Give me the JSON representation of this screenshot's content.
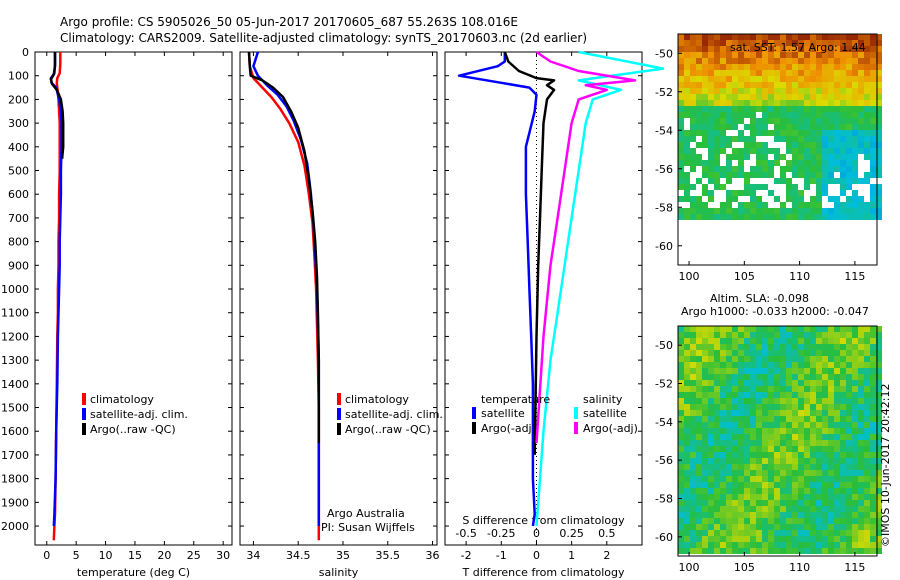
{
  "title_line1": "Argo profile: CS 5905026_50 05-Jun-2017 20170605_687 55.263S 108.016E",
  "title_line2": "Climatology: CARS2009. Satellite-adjusted climatology: synTS_20170603.nc (2d earlier)",
  "sst_title": "sat. SST: 1.57 Argo: 1.44",
  "sla_title_line1": "Altim. SLA: -0.098",
  "sla_title_line2": "Argo h1000: -0.033 h2000: -0.047",
  "imos_stamp": "©IMOS 10-Jun-2017 20:42:12",
  "credit_line1": "Argo Australia",
  "credit_line2": "PI: Susan Wijffels",
  "diff_legend": {
    "temperature_header": "temperature",
    "salinity_header": "salinity",
    "satellite": "satellite",
    "argo_adj": "Argo(-adj)"
  },
  "profile_legend": {
    "climatology": "climatology",
    "satellite_adj": "satellite-adj. clim.",
    "argo_raw": "Argo(..raw -QC)"
  },
  "colors": {
    "climatology": "#ff0000",
    "satellite": "#0000ff",
    "argo": "#000000",
    "salinity_satellite": "#00ffff",
    "salinity_argo": "#ff00ff"
  },
  "chart_data": [
    {
      "type": "line",
      "xlabel": "temperature (deg C)",
      "xticks": [
        "0",
        "5",
        "10",
        "15",
        "20",
        "25",
        "30"
      ],
      "xlim": [
        -2,
        31.5
      ],
      "yticks": [
        "0",
        "100",
        "200",
        "300",
        "400",
        "500",
        "600",
        "700",
        "800",
        "900",
        "1000",
        "1100",
        "1200",
        "1300",
        "1400",
        "1500",
        "1600",
        "1700",
        "1800",
        "1900",
        "2000"
      ],
      "ylim": [
        2080,
        0
      ],
      "series": [
        {
          "name": "climatology",
          "color": "#ff0000",
          "x": [
            2.3,
            2.3,
            2.2,
            1.8,
            1.7,
            1.8,
            2.0,
            2.1,
            2.2,
            2.2,
            2.2,
            2.1,
            2.1,
            2.0,
            2.0,
            1.9,
            1.9,
            1.8,
            1.7,
            1.6,
            1.5,
            1.4,
            1.3,
            1.2
          ],
          "y": [
            0,
            50,
            90,
            110,
            130,
            150,
            200,
            250,
            300,
            400,
            500,
            600,
            700,
            800,
            900,
            1000,
            1100,
            1200,
            1400,
            1600,
            1800,
            1950,
            2000,
            2060
          ]
        },
        {
          "name": "satellite-adj. clim.",
          "color": "#0000ff",
          "x": [
            1.4,
            1.4,
            1.3,
            0.7,
            0.8,
            1.6,
            2.1,
            2.4,
            2.5,
            2.5,
            2.4,
            2.4,
            2.3,
            2.2,
            2.2,
            2.1,
            2.0,
            1.9,
            1.8,
            1.6,
            1.5,
            1.3,
            1.2
          ],
          "y": [
            0,
            50,
            90,
            110,
            130,
            150,
            200,
            250,
            300,
            400,
            500,
            600,
            700,
            800,
            900,
            1000,
            1100,
            1200,
            1400,
            1600,
            1800,
            1950,
            2000
          ]
        },
        {
          "name": "Argo(..raw -QC)",
          "color": "#000000",
          "x": [
            1.4,
            1.4,
            1.2,
            0.7,
            0.9,
            1.7,
            2.4,
            2.7,
            2.8,
            2.8,
            2.6
          ],
          "y": [
            0,
            60,
            95,
            115,
            135,
            160,
            200,
            250,
            300,
            400,
            450
          ]
        }
      ]
    },
    {
      "type": "line",
      "xlabel": "salinity",
      "xticks": [
        "34",
        "34.5",
        "35",
        "35.5",
        "36"
      ],
      "xlim": [
        33.85,
        36.05
      ],
      "yticks": [
        "0",
        "100",
        "200",
        "300",
        "400",
        "500",
        "600",
        "700",
        "800",
        "900",
        "1000",
        "1100",
        "1200",
        "1300",
        "1400",
        "1500",
        "1600",
        "1700",
        "1800",
        "1900",
        "2000"
      ],
      "ylim": [
        2080,
        0
      ],
      "series": [
        {
          "name": "climatology",
          "color": "#ff0000",
          "x": [
            33.95,
            33.96,
            34.0,
            34.1,
            34.2,
            34.3,
            34.4,
            34.5,
            34.57,
            34.62,
            34.66,
            34.68,
            34.7,
            34.71,
            34.72,
            34.73,
            34.73,
            34.73,
            34.73,
            34.73
          ],
          "y": [
            0,
            60,
            110,
            150,
            190,
            240,
            300,
            380,
            480,
            600,
            720,
            850,
            1000,
            1150,
            1300,
            1500,
            1700,
            1900,
            2000,
            2060
          ]
        },
        {
          "name": "satellite-adj. clim.",
          "color": "#0000ff",
          "x": [
            34.05,
            34.0,
            34.05,
            34.15,
            34.27,
            34.37,
            34.45,
            34.53,
            34.6,
            34.64,
            34.67,
            34.69,
            34.71,
            34.72,
            34.73,
            34.73,
            34.73,
            34.73,
            34.73
          ],
          "y": [
            0,
            60,
            100,
            140,
            180,
            230,
            290,
            370,
            470,
            590,
            720,
            850,
            1000,
            1150,
            1300,
            1500,
            1700,
            1900,
            2000
          ]
        },
        {
          "name": "Argo(..raw -QC)",
          "color": "#000000",
          "x": [
            33.95,
            33.96,
            33.97,
            34.1,
            34.22,
            34.33,
            34.42,
            34.5,
            34.57,
            34.62,
            34.66,
            34.69,
            34.71,
            34.72,
            34.73,
            34.73
          ],
          "y": [
            0,
            60,
            100,
            120,
            150,
            190,
            250,
            320,
            420,
            540,
            670,
            800,
            950,
            1100,
            1300,
            1650
          ]
        }
      ]
    },
    {
      "type": "line",
      "xlabel": "T difference from climatology",
      "xticks": [
        "-2",
        "-1",
        "0",
        "1",
        "2"
      ],
      "xlim": [
        -2.6,
        3.0
      ],
      "secondary_xlabel": "S difference from climatology",
      "secondary_xticks": [
        "-0.5",
        "-0.25",
        "0",
        "0.25",
        "0.5"
      ],
      "yticks": [
        "0",
        "100",
        "200",
        "300",
        "400",
        "500",
        "600",
        "700",
        "800",
        "900",
        "1000",
        "1100",
        "1200",
        "1300",
        "1400",
        "1500",
        "1600",
        "1700",
        "1800",
        "1900",
        "2000"
      ],
      "ylim": [
        2080,
        0
      ],
      "series": [
        {
          "name": "temperature satellite",
          "color": "#0000ff",
          "x": [
            -0.9,
            -0.9,
            -1.1,
            -2.2,
            -1.0,
            -0.2,
            0.0,
            -0.05,
            -0.3,
            -0.3,
            -0.25,
            -0.2,
            -0.15,
            -0.1,
            -0.1,
            -0.1,
            -0.05,
            -0.1
          ],
          "y": [
            0,
            40,
            60,
            100,
            130,
            150,
            180,
            250,
            400,
            600,
            800,
            1000,
            1200,
            1400,
            1600,
            1800,
            1950,
            2000
          ]
        },
        {
          "name": "temperature Argo(-adj)",
          "color": "#000000",
          "x": [
            -0.9,
            -0.8,
            -0.5,
            0.0,
            0.5,
            0.3,
            0.5,
            0.3,
            0.2,
            0.15,
            0.1,
            0.05,
            0.0,
            -0.05
          ],
          "y": [
            0,
            40,
            80,
            110,
            120,
            140,
            160,
            200,
            300,
            500,
            700,
            900,
            1200,
            1700
          ]
        },
        {
          "name": "salinity satellite",
          "color": "#00ffff",
          "x": [
            0.3,
            0.9,
            0.3,
            0.6,
            0.4,
            0.35,
            0.3,
            0.25,
            0.2,
            0.15,
            0.1,
            0.05,
            0.0
          ],
          "y": [
            0,
            70,
            120,
            160,
            200,
            300,
            500,
            700,
            900,
            1100,
            1300,
            1600,
            2000
          ]
        },
        {
          "name": "salinity Argo(-adj)",
          "color": "#ff00ff",
          "x": [
            0.0,
            0.1,
            0.3,
            0.7,
            0.35,
            0.5,
            0.3,
            0.25,
            0.2,
            0.15,
            0.1,
            0.05,
            0.0
          ],
          "y": [
            0,
            40,
            80,
            120,
            140,
            160,
            200,
            300,
            500,
            700,
            900,
            1200,
            1650
          ]
        }
      ]
    },
    {
      "type": "heatmap",
      "title": "sat. SST: 1.57 Argo: 1.44",
      "xticks": [
        "100",
        "105",
        "110",
        "115"
      ],
      "yticks": [
        "-50",
        "-52",
        "-54",
        "-56",
        "-58",
        "-60"
      ],
      "xlim": [
        99,
        117
      ],
      "ylim": [
        -61,
        -49
      ]
    },
    {
      "type": "heatmap",
      "title": "Altim. SLA: -0.098",
      "xticks": [
        "100",
        "105",
        "110",
        "115"
      ],
      "yticks": [
        "-50",
        "-52",
        "-54",
        "-56",
        "-58",
        "-60"
      ],
      "xlim": [
        99,
        117
      ],
      "ylim": [
        -61,
        -49
      ]
    }
  ]
}
